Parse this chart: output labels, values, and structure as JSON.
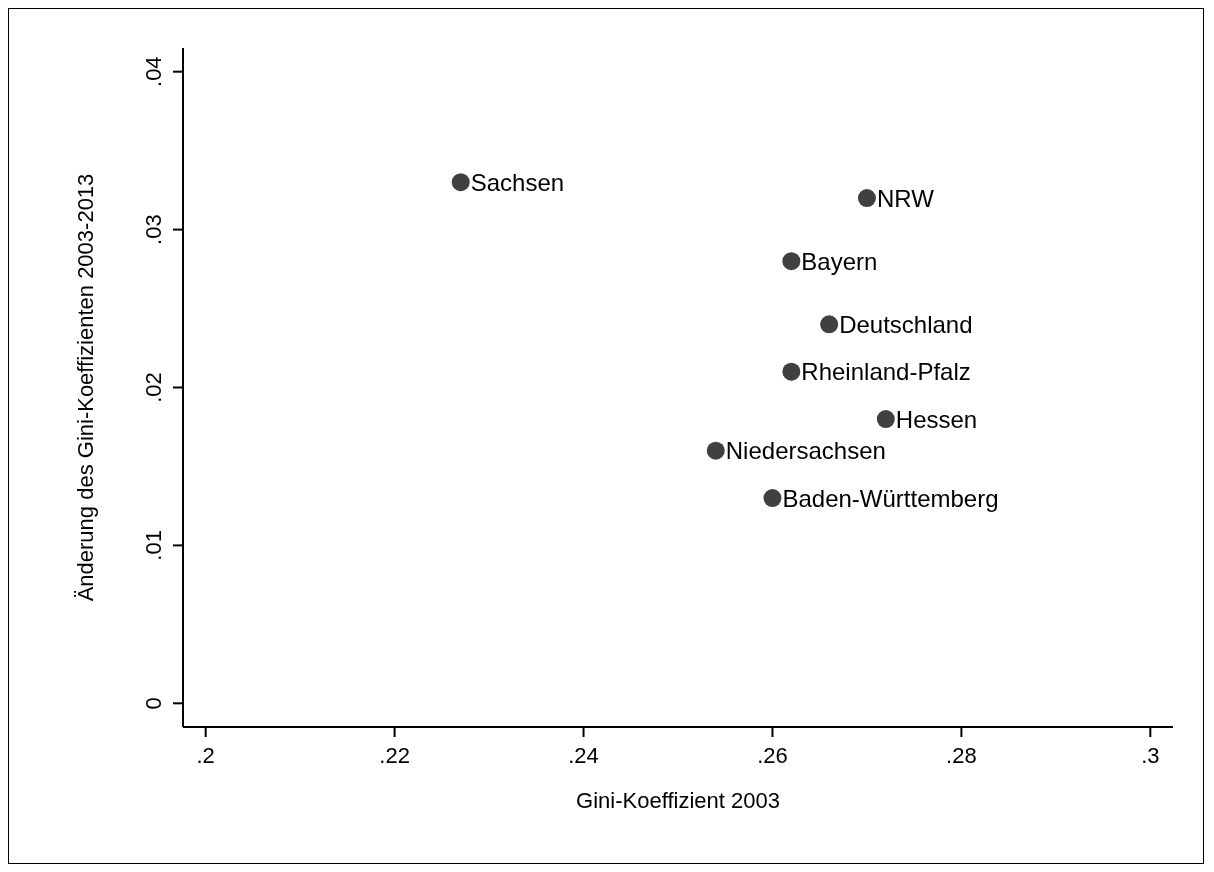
{
  "chart_data": {
    "type": "scatter",
    "xlabel": "Gini-Koeffizient 2003",
    "ylabel": "Änderung des Gini-Koeffizienten 2003-2013",
    "series": [
      {
        "color": "#404040",
        "x": [
          0.227,
          0.27,
          0.262,
          0.266,
          0.262,
          0.272,
          0.254,
          0.26
        ],
        "values": [
          0.033,
          0.032,
          0.028,
          0.024,
          0.021,
          0.018,
          0.016,
          0.013
        ]
      }
    ],
    "annotations": [
      {
        "text": "Sachsen",
        "x": 0.227,
        "y": 0.033
      },
      {
        "text": "NRW",
        "x": 0.27,
        "y": 0.032
      },
      {
        "text": "Bayern",
        "x": 0.262,
        "y": 0.028
      },
      {
        "text": "Deutschland",
        "x": 0.266,
        "y": 0.024
      },
      {
        "text": "Rheinland-Pfalz",
        "x": 0.262,
        "y": 0.021
      },
      {
        "text": "Hessen",
        "x": 0.272,
        "y": 0.018
      },
      {
        "text": "Niedersachsen",
        "x": 0.254,
        "y": 0.016
      },
      {
        "text": "Baden-Württemberg",
        "x": 0.26,
        "y": 0.013
      }
    ],
    "xlim": [
      0.1976,
      0.3024
    ],
    "xticks": [
      {
        "value": 0.2,
        "label": ".2"
      },
      {
        "value": 0.22,
        "label": ".22"
      },
      {
        "value": 0.24,
        "label": ".24"
      },
      {
        "value": 0.26,
        "label": ".26"
      },
      {
        "value": 0.28,
        "label": ".28"
      },
      {
        "value": 0.3,
        "label": ".3"
      }
    ],
    "ylim": [
      -0.0015,
      0.0415
    ],
    "yticks": [
      0,
      {
        "value": 0.01,
        "label": ".01"
      },
      {
        "value": 0.02,
        "label": ".02"
      },
      {
        "value": 0.03,
        "label": ".03"
      },
      {
        "value": 0.04,
        "label": ".04"
      }
    ],
    "grid": false,
    "legend": false,
    "marker": "circle"
  }
}
